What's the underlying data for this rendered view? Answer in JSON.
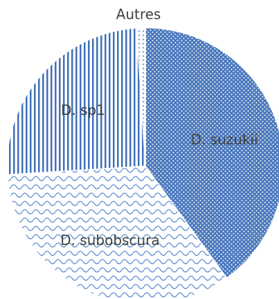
{
  "chart_data": {
    "type": "pie",
    "categories": [
      "D. suzukii",
      "D. subobscura",
      "D. sp1",
      "Autres"
    ],
    "values": [
      40,
      34,
      25,
      1
    ],
    "colors": [
      "#4a78bd",
      "#5b8ad0",
      "#3f70b8",
      "#5b8ad0"
    ]
  }
}
